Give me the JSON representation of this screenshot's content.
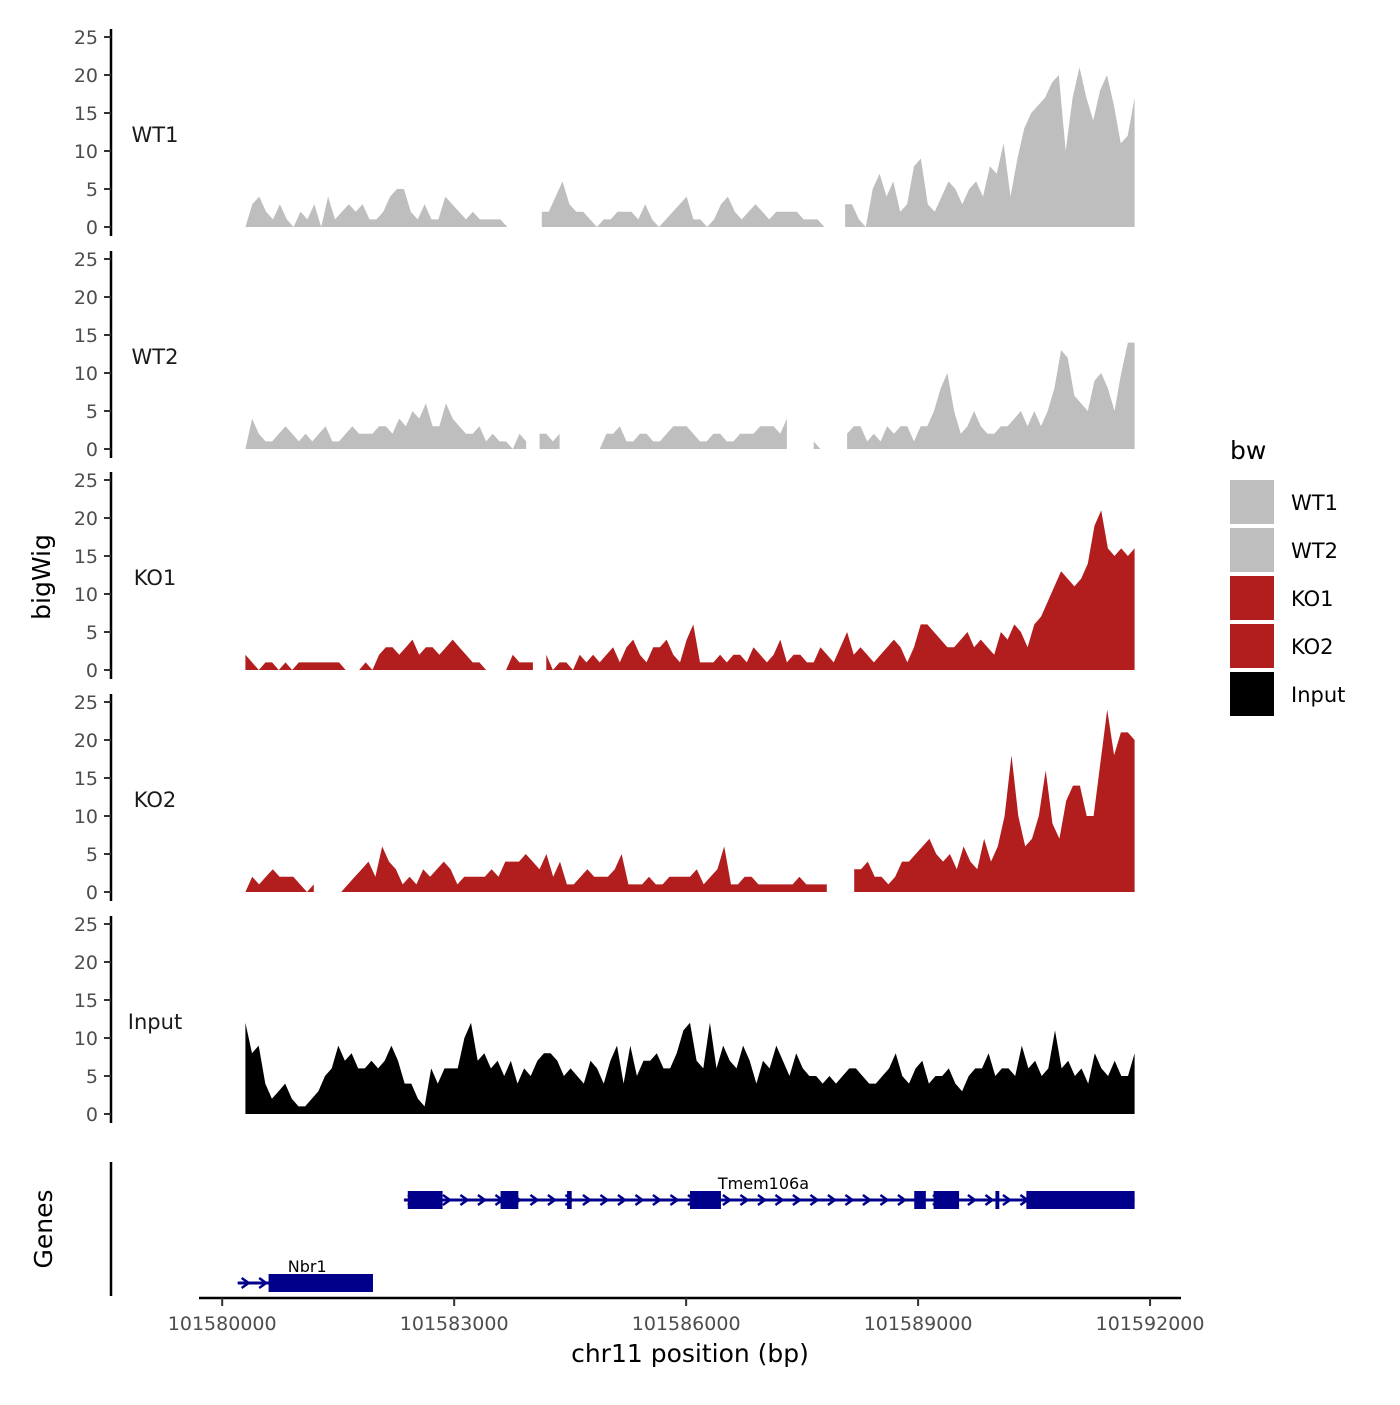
{
  "chart_data": {
    "type": "area",
    "ylabel": "bigWig",
    "genes_label": "Genes",
    "xlabel": "chr11 position (bp)",
    "x_ticks": [
      101580000,
      101583000,
      101586000,
      101589000,
      101592000
    ],
    "xlim": [
      101579700,
      101592400
    ],
    "data_xlim": [
      101580300,
      101591800
    ],
    "y_ticks": [
      0,
      5,
      10,
      15,
      20,
      25
    ],
    "ylim": [
      0,
      25
    ],
    "legend": {
      "title": "bw",
      "position": "right",
      "entries": [
        {
          "label": "WT1",
          "color": "#bebebe"
        },
        {
          "label": "WT2",
          "color": "#bebebe"
        },
        {
          "label": "KO1",
          "color": "#b21e1e"
        },
        {
          "label": "KO2",
          "color": "#b21e1e"
        },
        {
          "label": "Input",
          "color": "#000000"
        }
      ]
    },
    "series": [
      {
        "name": "WT1",
        "color": "#bebebe",
        "gaps": [
          [
            101583850,
            101584050
          ],
          [
            101587830,
            101588020
          ]
        ],
        "values": [
          0,
          3,
          4,
          2,
          1,
          3,
          1,
          0,
          2,
          1,
          3,
          0,
          4,
          1,
          2,
          3,
          2,
          3,
          1,
          1,
          2,
          4,
          5,
          5,
          2,
          1,
          3,
          1,
          1,
          4,
          3,
          2,
          1,
          2,
          1,
          1,
          1,
          1,
          0,
          0,
          0,
          0,
          1,
          2,
          2,
          4,
          6,
          3,
          2,
          2,
          1,
          0,
          1,
          1,
          2,
          2,
          2,
          1,
          3,
          1,
          0,
          1,
          2,
          3,
          4,
          1,
          1,
          0,
          1,
          3,
          4,
          2,
          1,
          2,
          3,
          2,
          1,
          2,
          2,
          2,
          2,
          1,
          1,
          1,
          0,
          0,
          2,
          3,
          3,
          1,
          0,
          5,
          7,
          4,
          6,
          2,
          3,
          8,
          9,
          3,
          2,
          4,
          6,
          5,
          3,
          5,
          6,
          4,
          8,
          7,
          11,
          4,
          9,
          13,
          15,
          16,
          17,
          19,
          20,
          10,
          17,
          21,
          17,
          14,
          18,
          20,
          16,
          11,
          12,
          17
        ]
      },
      {
        "name": "WT2",
        "color": "#bebebe",
        "gaps": [
          [
            101583950,
            101584040
          ],
          [
            101584400,
            101584780
          ],
          [
            101587390,
            101587600
          ],
          [
            101587900,
            101588080
          ]
        ],
        "values": [
          0,
          4,
          2,
          1,
          1,
          2,
          3,
          2,
          1,
          2,
          1,
          2,
          3,
          1,
          1,
          2,
          3,
          2,
          2,
          2,
          3,
          3,
          2,
          4,
          3,
          5,
          4,
          6,
          3,
          3,
          6,
          4,
          3,
          2,
          2,
          3,
          1,
          2,
          1,
          1,
          0,
          2,
          1,
          0,
          2,
          2,
          1,
          2,
          1,
          1,
          5,
          0,
          0,
          0,
          2,
          2,
          3,
          1,
          1,
          2,
          2,
          1,
          1,
          2,
          3,
          3,
          3,
          2,
          1,
          1,
          2,
          2,
          1,
          1,
          2,
          2,
          2,
          3,
          3,
          3,
          2,
          4,
          1,
          0,
          1,
          1,
          0,
          0,
          0,
          1,
          2,
          3,
          3,
          1,
          2,
          1,
          3,
          2,
          3,
          3,
          1,
          3,
          3,
          5,
          8,
          10,
          5,
          2,
          3,
          5,
          3,
          2,
          2,
          3,
          3,
          4,
          5,
          3,
          5,
          3,
          5,
          8,
          13,
          12,
          7,
          6,
          5,
          9,
          10,
          8,
          5,
          10,
          14,
          14
        ]
      },
      {
        "name": "KO1",
        "color": "#b21e1e",
        "gaps": [
          [
            101584070,
            101584180
          ],
          [
            101587760,
            101587800
          ]
        ],
        "values": [
          2,
          1,
          0,
          1,
          1,
          0,
          1,
          0,
          1,
          1,
          1,
          1,
          1,
          1,
          1,
          0,
          0,
          0,
          1,
          0,
          2,
          3,
          3,
          2,
          3,
          4,
          2,
          3,
          3,
          2,
          3,
          4,
          3,
          2,
          1,
          1,
          0,
          0,
          0,
          0,
          2,
          1,
          1,
          1,
          2,
          2,
          0,
          1,
          1,
          0,
          2,
          1,
          2,
          1,
          2,
          3,
          1,
          3,
          4,
          2,
          1,
          3,
          3,
          4,
          2,
          1,
          4,
          6,
          1,
          1,
          1,
          2,
          1,
          2,
          2,
          1,
          3,
          2,
          1,
          2,
          4,
          1,
          2,
          2,
          1,
          1,
          3,
          2,
          1,
          3,
          5,
          2,
          3,
          2,
          1,
          2,
          3,
          4,
          3,
          1,
          3,
          6,
          6,
          5,
          4,
          3,
          3,
          4,
          5,
          3,
          4,
          3,
          2,
          5,
          4,
          6,
          5,
          3,
          6,
          7,
          9,
          11,
          13,
          12,
          11,
          12,
          14,
          19,
          21,
          16,
          15,
          16,
          15,
          16
        ]
      },
      {
        "name": "KO2",
        "color": "#b21e1e",
        "gaps": [
          [
            101581200,
            101581450
          ],
          [
            101587820,
            101588100
          ]
        ],
        "values": [
          0,
          2,
          1,
          2,
          3,
          2,
          2,
          2,
          1,
          0,
          1,
          1,
          2,
          1,
          0,
          1,
          2,
          3,
          4,
          2,
          6,
          4,
          3,
          1,
          2,
          1,
          3,
          2,
          3,
          4,
          3,
          1,
          2,
          2,
          2,
          2,
          3,
          2,
          4,
          4,
          4,
          5,
          4,
          3,
          5,
          2,
          4,
          1,
          1,
          2,
          3,
          2,
          2,
          2,
          3,
          5,
          1,
          1,
          1,
          2,
          1,
          1,
          2,
          2,
          2,
          2,
          3,
          1,
          2,
          3,
          6,
          1,
          1,
          2,
          2,
          1,
          1,
          1,
          1,
          1,
          1,
          2,
          1,
          1,
          1,
          1,
          1,
          3,
          4,
          3,
          3,
          4,
          2,
          2,
          1,
          2,
          4,
          4,
          5,
          6,
          7,
          5,
          4,
          5,
          3,
          6,
          4,
          3,
          7,
          4,
          6,
          10,
          18,
          10,
          6,
          7,
          10,
          16,
          9,
          7,
          12,
          14,
          14,
          10,
          10,
          17,
          24,
          18,
          21,
          21,
          20
        ]
      },
      {
        "name": "Input",
        "color": "#000000",
        "gaps": [],
        "values": [
          12,
          8,
          9,
          4,
          2,
          3,
          4,
          2,
          1,
          1,
          2,
          3,
          5,
          6,
          9,
          7,
          8,
          6,
          6,
          7,
          6,
          7,
          9,
          7,
          4,
          4,
          2,
          1,
          6,
          4,
          6,
          6,
          6,
          10,
          12,
          7,
          8,
          6,
          7,
          5,
          7,
          4,
          6,
          5,
          7,
          8,
          8,
          7,
          5,
          6,
          5,
          4,
          7,
          6,
          4,
          7,
          9,
          4,
          9,
          5,
          7,
          7,
          8,
          6,
          6,
          8,
          11,
          12,
          7,
          6,
          12,
          6,
          9,
          7,
          6,
          9,
          7,
          4,
          7,
          6,
          9,
          7,
          5,
          8,
          6,
          5,
          5,
          4,
          5,
          4,
          5,
          6,
          6,
          5,
          4,
          4,
          5,
          6,
          8,
          5,
          4,
          6,
          7,
          4,
          5,
          5,
          6,
          4,
          3,
          5,
          6,
          6,
          8,
          5,
          6,
          6,
          5,
          9,
          6,
          7,
          5,
          6,
          11,
          6,
          7,
          5,
          6,
          4,
          8,
          6,
          5,
          7,
          5,
          5,
          8
        ]
      }
    ],
    "genes": [
      {
        "name": "Tmem106a",
        "strand": "+",
        "start": 101582350,
        "end": 101591800,
        "row": 1,
        "label_x": 101587000,
        "exons": [
          [
            101582400,
            101582850
          ],
          [
            101583600,
            101583830
          ],
          [
            101584460,
            101584520
          ],
          [
            101586050,
            101586450
          ],
          [
            101588950,
            101589100
          ],
          [
            101589200,
            101589530
          ],
          [
            101590000,
            101590050
          ],
          [
            101590400,
            101591800
          ]
        ]
      },
      {
        "name": "Nbr1",
        "strand": "+",
        "start": 101580200,
        "end": 101581950,
        "row": 2,
        "label_x": 101581100,
        "exons": [
          [
            101580600,
            101581950
          ]
        ]
      }
    ]
  }
}
